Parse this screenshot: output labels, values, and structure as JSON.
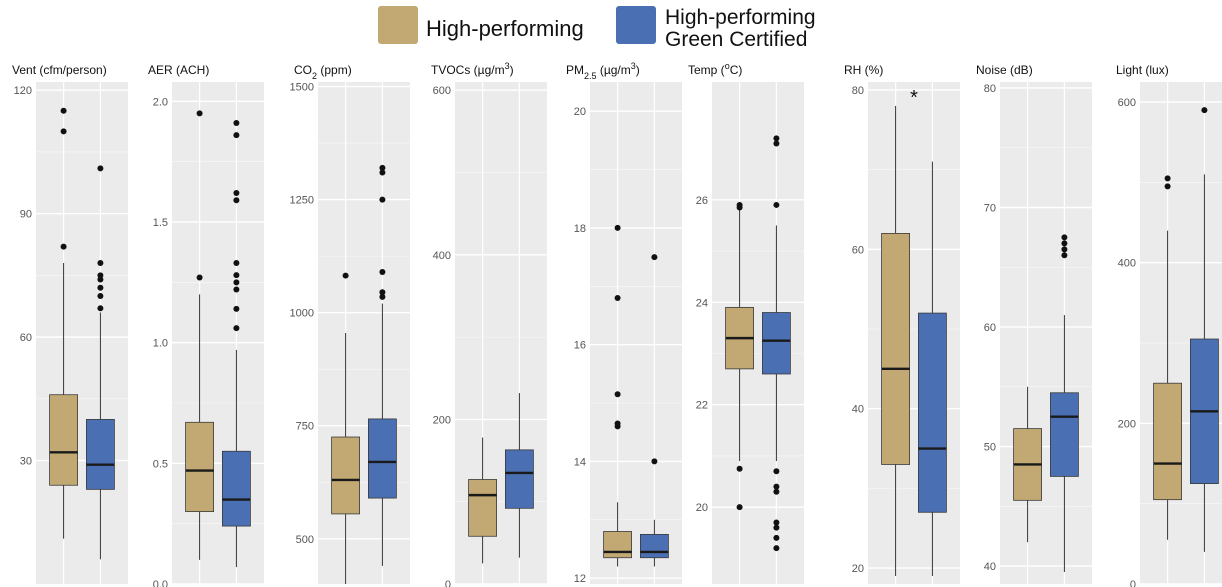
{
  "colors": {
    "panel_bg": "#ebebeb",
    "grid": "#ffffff",
    "high_performing": "#c2a973",
    "green_certified": "#4a6fb3",
    "median": "#1a1a1a",
    "whisker": "#333333",
    "outlier": "#111111",
    "tick_text": "#555555",
    "title_text": "#111111"
  },
  "legend": {
    "series": [
      {
        "name": "High-performing",
        "color": "#c2a973"
      },
      {
        "name": "High-performing Green Certified",
        "color": "#4a6fb3"
      }
    ]
  },
  "chart_data": [
    {
      "type": "boxplot",
      "title": "Vent (cfm/person)",
      "ylim": [
        0,
        122
      ],
      "ticks": [
        30,
        60,
        90,
        120
      ],
      "boxes": [
        {
          "series": "High-performing",
          "whislo": 11,
          "q1": 24,
          "med": 32,
          "q3": 46,
          "whishi": 78,
          "fliers": [
            82,
            110,
            115
          ]
        },
        {
          "series": "High-performing Green Certified",
          "whislo": 6,
          "q1": 23,
          "med": 29,
          "q3": 40,
          "whishi": 66,
          "fliers": [
            67,
            70,
            72,
            74,
            75,
            78,
            101
          ]
        }
      ]
    },
    {
      "type": "boxplot",
      "title": "AER (ACH)",
      "ylim": [
        0,
        2.08
      ],
      "ticks": [
        0.0,
        0.5,
        1.0,
        1.5,
        2.0
      ],
      "tick_labels": [
        "0.0",
        "0.5",
        "1.0",
        "1.5",
        "2.0"
      ],
      "boxes": [
        {
          "series": "High-performing",
          "whislo": 0.1,
          "q1": 0.3,
          "med": 0.47,
          "q3": 0.67,
          "whishi": 1.2,
          "fliers": [
            1.27,
            1.95
          ]
        },
        {
          "series": "High-performing Green Certified",
          "whislo": 0.07,
          "q1": 0.24,
          "med": 0.35,
          "q3": 0.55,
          "whishi": 0.97,
          "fliers": [
            1.06,
            1.14,
            1.22,
            1.25,
            1.28,
            1.33,
            1.59,
            1.62,
            1.86,
            1.91
          ]
        }
      ]
    },
    {
      "type": "boxplot",
      "title_main": "CO",
      "title_sub": "2",
      "title_tail": " (ppm)",
      "ylim": [
        400,
        1510
      ],
      "ticks": [
        500,
        750,
        1000,
        1250,
        1500
      ],
      "boxes": [
        {
          "series": "High-performing",
          "whislo": 400,
          "q1": 555,
          "med": 630,
          "q3": 725,
          "whishi": 955,
          "fliers": [
            1082
          ]
        },
        {
          "series": "High-performing Green Certified",
          "whislo": 440,
          "q1": 590,
          "med": 670,
          "q3": 765,
          "whishi": 1020,
          "fliers": [
            1035,
            1045,
            1090,
            1250,
            1310,
            1320
          ]
        }
      ]
    },
    {
      "type": "boxplot",
      "title_main": "TVOCs (µg/m",
      "title_sup": "3",
      "title_tail": ")",
      "ylim": [
        0,
        610
      ],
      "ticks": [
        0,
        200,
        400,
        600
      ],
      "boxes": [
        {
          "series": "High-performing",
          "whislo": 25,
          "q1": 58,
          "med": 108,
          "q3": 127,
          "whishi": 178,
          "fliers": []
        },
        {
          "series": "High-performing Green Certified",
          "whislo": 32,
          "q1": 92,
          "med": 135,
          "q3": 163,
          "whishi": 232,
          "fliers": []
        }
      ]
    },
    {
      "type": "boxplot",
      "title_main": "PM",
      "title_sub": "2.5",
      "title_tail": " (µg/m",
      "title_sup": "3",
      "title_end": ")",
      "ylim": [
        11.9,
        20.5
      ],
      "ticks": [
        12,
        14,
        16,
        18,
        20
      ],
      "boxes": [
        {
          "series": "High-performing",
          "whislo": 12.2,
          "q1": 12.35,
          "med": 12.45,
          "q3": 12.8,
          "whishi": 13.3,
          "fliers": [
            14.6,
            14.65,
            15.15,
            16.8,
            18.0
          ]
        },
        {
          "series": "High-performing Green Certified",
          "whislo": 12.2,
          "q1": 12.35,
          "med": 12.45,
          "q3": 12.75,
          "whishi": 13.0,
          "fliers": [
            14.0,
            17.5
          ]
        }
      ]
    },
    {
      "type": "boxplot",
      "title_main": "Temp (",
      "title_sup": "o",
      "title_tail": "C)",
      "ylim": [
        18.5,
        28.3
      ],
      "ticks": [
        20,
        22,
        24,
        26
      ],
      "boxes": [
        {
          "series": "High-performing",
          "whislo": 20.9,
          "q1": 22.7,
          "med": 23.3,
          "q3": 23.9,
          "whishi": 25.8,
          "fliers": [
            20.0,
            20.75,
            25.85,
            25.9
          ]
        },
        {
          "series": "High-performing Green Certified",
          "whislo": 20.9,
          "q1": 22.6,
          "med": 23.25,
          "q3": 23.8,
          "whishi": 25.5,
          "fliers": [
            19.2,
            19.4,
            19.6,
            19.7,
            20.3,
            20.4,
            20.7,
            25.9,
            27.1,
            27.2
          ]
        }
      ]
    },
    {
      "type": "boxplot",
      "title": "RH (%)",
      "ylim": [
        18,
        81
      ],
      "ticks": [
        20,
        40,
        60,
        80
      ],
      "annotation": "*",
      "boxes": [
        {
          "series": "High-performing",
          "whislo": 19,
          "q1": 33,
          "med": 45,
          "q3": 62,
          "whishi": 78,
          "fliers": []
        },
        {
          "series": "High-performing Green Certified",
          "whislo": 19,
          "q1": 27,
          "med": 35,
          "q3": 52,
          "whishi": 71,
          "fliers": []
        }
      ]
    },
    {
      "type": "boxplot",
      "title": "Noise (dB)",
      "ylim": [
        38.5,
        80.5
      ],
      "ticks": [
        40,
        50,
        60,
        70,
        80
      ],
      "boxes": [
        {
          "series": "High-performing",
          "whislo": 42,
          "q1": 45.5,
          "med": 48.5,
          "q3": 51.5,
          "whishi": 55,
          "fliers": []
        },
        {
          "series": "High-performing Green Certified",
          "whislo": 39.5,
          "q1": 47.5,
          "med": 52.5,
          "q3": 54.5,
          "whishi": 61,
          "fliers": [
            66,
            66.5,
            67,
            67.5
          ]
        }
      ]
    },
    {
      "type": "boxplot",
      "title": "Light (lux)",
      "ylim": [
        0,
        625
      ],
      "ticks": [
        0,
        200,
        400,
        600
      ],
      "boxes": [
        {
          "series": "High-performing",
          "whislo": 55,
          "q1": 105,
          "med": 150,
          "q3": 250,
          "whishi": 440,
          "fliers": [
            495,
            505
          ]
        },
        {
          "series": "High-performing Green Certified",
          "whislo": 40,
          "q1": 125,
          "med": 215,
          "q3": 305,
          "whishi": 510,
          "fliers": [
            590
          ]
        }
      ]
    }
  ]
}
